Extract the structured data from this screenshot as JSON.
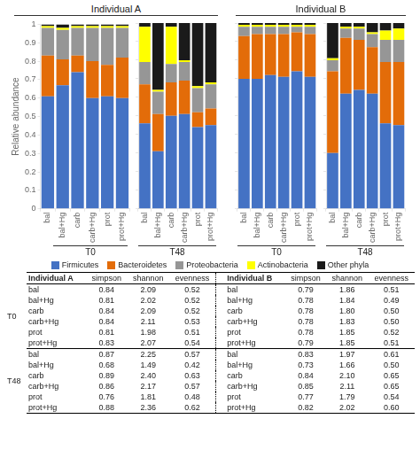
{
  "chart_data": [
    {
      "type": "bar",
      "stacked": true,
      "title": "Individual A",
      "subtitle": "T0",
      "ylabel": "Relative abundance",
      "categories": [
        "bal",
        "bal+Hg",
        "carb",
        "carb+Hg",
        "prot",
        "prot+Hg"
      ],
      "series": [
        {
          "name": "Firmicutes",
          "color": "#4472C4",
          "values": [
            0.61,
            0.67,
            0.74,
            0.6,
            0.61,
            0.6
          ]
        },
        {
          "name": "Bacteroidetes",
          "color": "#E36C09",
          "values": [
            0.22,
            0.14,
            0.09,
            0.2,
            0.17,
            0.22
          ]
        },
        {
          "name": "Proteobacteria",
          "color": "#969696",
          "values": [
            0.15,
            0.16,
            0.15,
            0.18,
            0.2,
            0.16
          ]
        },
        {
          "name": "Actinobacteria",
          "color": "#FFFF00",
          "values": [
            0.01,
            0.01,
            0.01,
            0.01,
            0.01,
            0.01
          ]
        },
        {
          "name": "Other phyla",
          "color": "#1A1A1A",
          "values": [
            0.01,
            0.02,
            0.01,
            0.01,
            0.01,
            0.01
          ]
        }
      ],
      "ylim": [
        0,
        1
      ],
      "yticks": [
        0,
        0.1,
        0.2,
        0.3,
        0.4,
        0.5,
        0.6,
        0.7,
        0.8,
        0.9,
        1
      ],
      "grid": false,
      "legend": "bottom"
    },
    {
      "type": "bar",
      "stacked": true,
      "subtitle": "T48",
      "categories": [
        "bal",
        "bal+Hg",
        "carb",
        "carb+Hg",
        "prot",
        "prot+Hg"
      ],
      "series": [
        {
          "name": "Firmicutes",
          "color": "#4472C4",
          "values": [
            0.46,
            0.31,
            0.5,
            0.51,
            0.44,
            0.45
          ]
        },
        {
          "name": "Bacteroidetes",
          "color": "#E36C09",
          "values": [
            0.21,
            0.2,
            0.18,
            0.18,
            0.08,
            0.09
          ]
        },
        {
          "name": "Proteobacteria",
          "color": "#969696",
          "values": [
            0.12,
            0.12,
            0.1,
            0.1,
            0.13,
            0.13
          ]
        },
        {
          "name": "Actinobacteria",
          "color": "#FFFF00",
          "values": [
            0.19,
            0.01,
            0.2,
            0.01,
            0.01,
            0.01
          ]
        },
        {
          "name": "Other phyla",
          "color": "#1A1A1A",
          "values": [
            0.02,
            0.36,
            0.02,
            0.2,
            0.34,
            0.32
          ]
        }
      ],
      "ylim": [
        0,
        1
      ],
      "yticks": [
        0,
        0.1,
        0.2,
        0.3,
        0.4,
        0.5,
        0.6,
        0.7,
        0.8,
        0.9,
        1
      ],
      "grid": false,
      "tick_labels": "x"
    },
    {
      "type": "bar",
      "stacked": true,
      "title": "Individual B",
      "subtitle": "T0",
      "categories": [
        "bal",
        "bal+Hg",
        "carb",
        "carb+Hg",
        "prot",
        "prot+Hg"
      ],
      "series": [
        {
          "name": "Firmicutes",
          "color": "#4472C4",
          "values": [
            0.7,
            0.7,
            0.72,
            0.71,
            0.74,
            0.71
          ]
        },
        {
          "name": "Bacteroidetes",
          "color": "#E36C09",
          "values": [
            0.23,
            0.24,
            0.22,
            0.23,
            0.21,
            0.23
          ]
        },
        {
          "name": "Proteobacteria",
          "color": "#969696",
          "values": [
            0.05,
            0.04,
            0.04,
            0.04,
            0.03,
            0.04
          ]
        },
        {
          "name": "Actinobacteria",
          "color": "#FFFF00",
          "values": [
            0.01,
            0.01,
            0.01,
            0.01,
            0.01,
            0.01
          ]
        },
        {
          "name": "Other phyla",
          "color": "#1A1A1A",
          "values": [
            0.01,
            0.01,
            0.01,
            0.01,
            0.01,
            0.01
          ]
        }
      ],
      "ylim": [
        0,
        1
      ],
      "yticks": [
        0,
        0.1,
        0.2,
        0.3,
        0.4,
        0.5,
        0.6,
        0.7,
        0.8,
        0.9,
        1
      ],
      "grid": false,
      "tick_labels": "x"
    },
    {
      "type": "bar",
      "stacked": true,
      "subtitle": "T48",
      "categories": [
        "bal",
        "bal+Hg",
        "carb",
        "carb+Hg",
        "prot",
        "prot+Hg"
      ],
      "series": [
        {
          "name": "Firmicutes",
          "color": "#4472C4",
          "values": [
            0.3,
            0.62,
            0.64,
            0.62,
            0.46,
            0.45
          ]
        },
        {
          "name": "Bacteroidetes",
          "color": "#E36C09",
          "values": [
            0.44,
            0.3,
            0.27,
            0.25,
            0.33,
            0.34
          ]
        },
        {
          "name": "Proteobacteria",
          "color": "#969696",
          "values": [
            0.06,
            0.05,
            0.06,
            0.07,
            0.12,
            0.12
          ]
        },
        {
          "name": "Actinobacteria",
          "color": "#FFFF00",
          "values": [
            0.01,
            0.01,
            0.01,
            0.01,
            0.05,
            0.06
          ]
        },
        {
          "name": "Other phyla",
          "color": "#1A1A1A",
          "values": [
            0.19,
            0.02,
            0.02,
            0.05,
            0.04,
            0.03
          ]
        }
      ],
      "ylim": [
        0,
        1
      ],
      "yticks": [
        0,
        0.1,
        0.2,
        0.3,
        0.4,
        0.5,
        0.6,
        0.7,
        0.8,
        0.9,
        1
      ],
      "grid": false,
      "tick_labels": "x"
    },
    {
      "type": "table",
      "columns": [
        "simpson",
        "shannon",
        "evenness"
      ],
      "groups": [
        {
          "title": "Individual A",
          "sections": [
            {
              "name": "T0",
              "rows": [
                {
                  "label": "bal",
                  "values": [
                    0.84,
                    2.09,
                    0.52
                  ],
                  "value_labels": [
                    "0.84",
                    "2.09",
                    "0.52"
                  ]
                },
                {
                  "label": "bal+Hg",
                  "values": [
                    0.81,
                    2.02,
                    0.52
                  ],
                  "value_labels": [
                    "0.81",
                    "2.02",
                    "0.52"
                  ]
                },
                {
                  "label": "carb",
                  "values": [
                    0.84,
                    2.09,
                    0.52
                  ],
                  "value_labels": [
                    "0.84",
                    "2.09",
                    "0.52"
                  ]
                },
                {
                  "label": "carb+Hg",
                  "values": [
                    0.84,
                    2.11,
                    0.53
                  ],
                  "value_labels": [
                    "0.84",
                    "2.11",
                    "0.53"
                  ]
                },
                {
                  "label": "prot",
                  "values": [
                    0.81,
                    1.98,
                    0.51
                  ],
                  "value_labels": [
                    "0.81",
                    "1.98",
                    "0.51"
                  ]
                },
                {
                  "label": "prot+Hg",
                  "values": [
                    0.83,
                    2.07,
                    0.54
                  ],
                  "value_labels": [
                    "0.83",
                    "2.07",
                    "0.54"
                  ]
                }
              ]
            },
            {
              "name": "T48",
              "rows": [
                {
                  "label": "bal",
                  "values": [
                    0.87,
                    2.25,
                    0.57
                  ],
                  "value_labels": [
                    "0.87",
                    "2.25",
                    "0.57"
                  ]
                },
                {
                  "label": "bal+Hg",
                  "values": [
                    0.68,
                    1.49,
                    0.42
                  ],
                  "value_labels": [
                    "0.68",
                    "1.49",
                    "0.42"
                  ]
                },
                {
                  "label": "carb",
                  "values": [
                    0.89,
                    2.4,
                    0.63
                  ],
                  "value_labels": [
                    "0.89",
                    "2.40",
                    "0.63"
                  ]
                },
                {
                  "label": "carb+Hg",
                  "values": [
                    0.86,
                    2.17,
                    0.57
                  ],
                  "value_labels": [
                    "0.86",
                    "2.17",
                    "0.57"
                  ]
                },
                {
                  "label": "prot",
                  "values": [
                    0.76,
                    1.81,
                    0.48
                  ],
                  "value_labels": [
                    "0.76",
                    "1.81",
                    "0.48"
                  ]
                },
                {
                  "label": "prot+Hg",
                  "values": [
                    0.88,
                    2.36,
                    0.62
                  ],
                  "value_labels": [
                    "0.88",
                    "2.36",
                    "0.62"
                  ]
                }
              ]
            }
          ]
        },
        {
          "title": "Individual B",
          "sections": [
            {
              "name": "T0",
              "rows": [
                {
                  "label": "bal",
                  "values": [
                    0.79,
                    1.86,
                    0.51
                  ],
                  "value_labels": [
                    "0.79",
                    "1.86",
                    "0.51"
                  ]
                },
                {
                  "label": "bal+Hg",
                  "values": [
                    0.78,
                    1.84,
                    0.49
                  ],
                  "value_labels": [
                    "0.78",
                    "1.84",
                    "0.49"
                  ]
                },
                {
                  "label": "carb",
                  "values": [
                    0.78,
                    1.8,
                    0.5
                  ],
                  "value_labels": [
                    "0.78",
                    "1.80",
                    "0.50"
                  ]
                },
                {
                  "label": "carb+Hg",
                  "values": [
                    0.78,
                    1.83,
                    0.5
                  ],
                  "value_labels": [
                    "0.78",
                    "1.83",
                    "0.50"
                  ]
                },
                {
                  "label": "prot",
                  "values": [
                    0.78,
                    1.85,
                    0.52
                  ],
                  "value_labels": [
                    "0.78",
                    "1.85",
                    "0.52"
                  ]
                },
                {
                  "label": "prot+Hg",
                  "values": [
                    0.79,
                    1.85,
                    0.51
                  ],
                  "value_labels": [
                    "0.79",
                    "1.85",
                    "0.51"
                  ]
                }
              ]
            },
            {
              "name": "T48",
              "rows": [
                {
                  "label": "bal",
                  "values": [
                    0.83,
                    1.97,
                    0.61
                  ],
                  "value_labels": [
                    "0.83",
                    "1.97",
                    "0.61"
                  ]
                },
                {
                  "label": "bal+Hg",
                  "values": [
                    0.73,
                    1.66,
                    0.5
                  ],
                  "value_labels": [
                    "0.73",
                    "1.66",
                    "0.50"
                  ]
                },
                {
                  "label": "carb",
                  "values": [
                    0.84,
                    2.1,
                    0.65
                  ],
                  "value_labels": [
                    "0.84",
                    "2.10",
                    "0.65"
                  ]
                },
                {
                  "label": "carb+Hg",
                  "values": [
                    0.85,
                    2.11,
                    0.65
                  ],
                  "value_labels": [
                    "0.85",
                    "2.11",
                    "0.65"
                  ]
                },
                {
                  "label": "prot",
                  "values": [
                    0.77,
                    1.79,
                    0.54
                  ],
                  "value_labels": [
                    "0.77",
                    "1.79",
                    "0.54"
                  ]
                },
                {
                  "label": "prot+Hg",
                  "values": [
                    0.82,
                    2.02,
                    0.6
                  ],
                  "value_labels": [
                    "0.82",
                    "2.02",
                    "0.60"
                  ]
                }
              ]
            }
          ]
        }
      ]
    }
  ]
}
